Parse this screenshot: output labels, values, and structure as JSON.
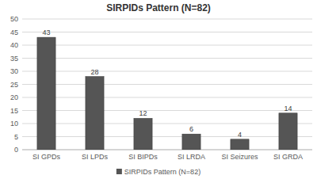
{
  "chart_data": {
    "type": "bar",
    "title": "SIRPIDs Pattern (N=82)",
    "categories": [
      "SI GPDs",
      "SI LPDs",
      "SI BIPDs",
      "SI LRDA",
      "SI Seizures",
      "SI GRDA"
    ],
    "series": [
      {
        "name": "SIRPIDs Pattern (N=82)",
        "color": "#555555",
        "values": [
          43,
          28,
          12,
          6,
          4,
          14
        ]
      }
    ],
    "ylim": [
      0,
      50
    ],
    "yticks": [
      0,
      5,
      10,
      15,
      20,
      25,
      30,
      35,
      40,
      45,
      50
    ],
    "grid": true,
    "data_labels": true,
    "legend": "bottom"
  }
}
